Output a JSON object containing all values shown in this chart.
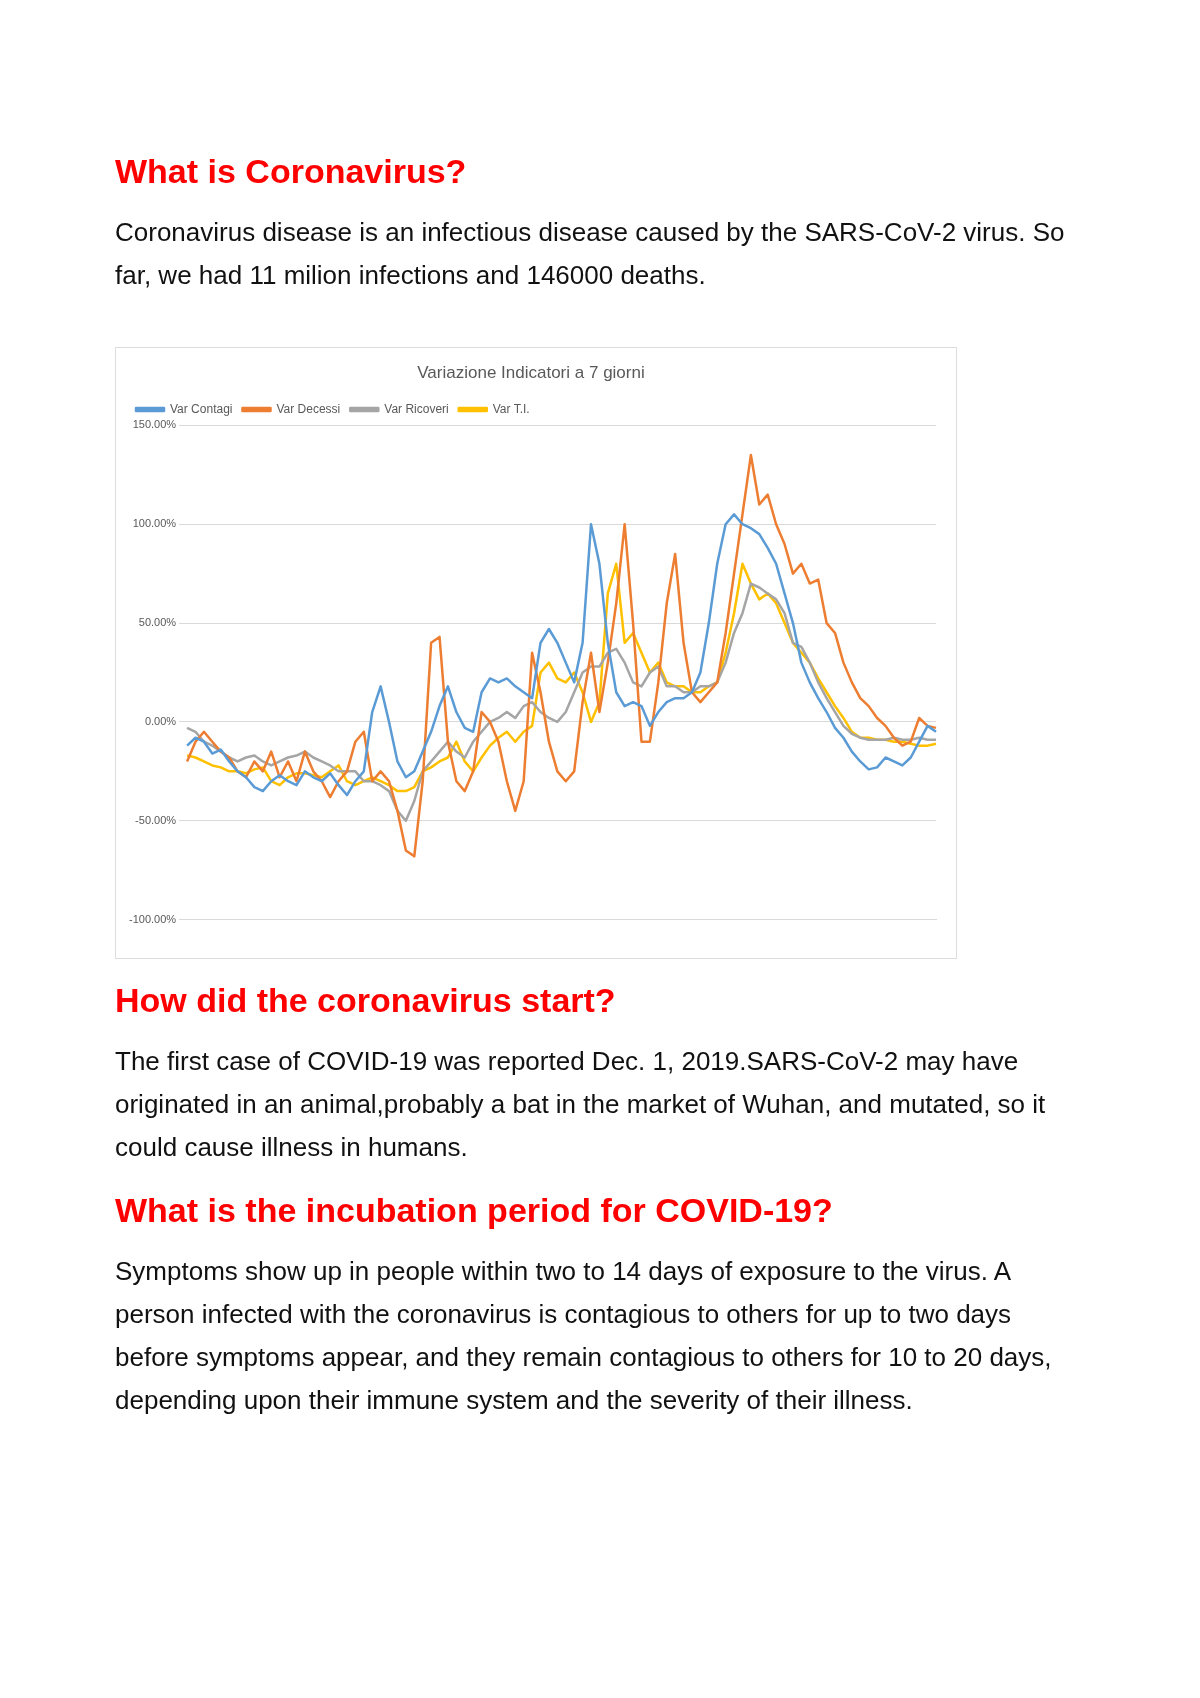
{
  "chart_data": {
    "type": "line",
    "title": "Variazione Indicatori a 7 giorni",
    "annotations": [
      "What is Coronavirus?",
      "Coronavirus disease is an infectious disease caused by the SARS-CoV-2 virus. So far, we had 11 milion infections and 146000 deaths.",
      "How did the coronavirus start?",
      "The first case of COVID-19 was reported Dec. 1, 2019.SARS-CoV-2 may have originated in an animal,probably a bat in the market of Wuhan, and mutated, so it could cause illness in humans.",
      "What is the incubation period for COVID-19?",
      "Symptoms show up in people within two to 14 days of exposure to the virus. A person infected with the coronavirus is contagious to others for up to two days before symptoms appear, and they remain contagious to others for 10 to 20 days, depending upon their immune system and the severity of their illness."
    ],
    "categories": [
      null,
      null,
      null,
      null,
      null,
      null,
      null,
      null,
      null,
      null,
      null,
      null,
      null,
      null,
      null,
      null,
      null,
      null,
      null,
      null,
      null,
      null,
      null,
      null,
      null,
      null,
      null,
      null,
      null,
      null,
      null,
      null,
      null,
      null,
      null,
      null,
      null,
      null,
      null,
      null,
      null,
      null,
      null,
      null,
      null,
      null,
      null,
      null,
      null,
      null,
      null,
      null,
      null,
      null,
      null,
      null,
      null,
      null,
      null,
      null,
      null,
      null,
      null,
      null,
      null,
      null,
      null,
      null,
      null,
      null,
      null,
      null,
      null,
      null,
      null,
      null,
      null,
      null,
      null,
      null,
      null,
      null,
      null,
      null,
      null,
      null,
      null,
      null,
      null,
      null
    ],
    "series": [
      {
        "name": "Var Contagi",
        "color": "#5b9bd5",
        "values": [
          -12,
          -8,
          -10,
          -16,
          -14,
          -20,
          -25,
          -28,
          -33,
          -35,
          -30,
          -27,
          -30,
          -32,
          -25,
          -28,
          -30,
          -26,
          -32,
          -37,
          -30,
          -25,
          5,
          18,
          0,
          -20,
          -28,
          -25,
          -15,
          -5,
          8,
          18,
          5,
          -3,
          -5,
          15,
          22,
          20,
          22,
          18,
          15,
          12,
          40,
          47,
          40,
          30,
          20,
          40,
          100,
          80,
          40,
          15,
          8,
          10,
          8,
          -2,
          5,
          10,
          12,
          12,
          15,
          25,
          50,
          80,
          100,
          105,
          100,
          98,
          95,
          88,
          80,
          65,
          50,
          30,
          20,
          12,
          5,
          -3,
          -8,
          -15,
          -20,
          -24,
          -23,
          -18,
          -20,
          -22,
          -18,
          -10,
          -2,
          -5
        ]
      },
      {
        "name": "Var Decessi",
        "color": "#ed7d31",
        "values": [
          -20,
          -10,
          -5,
          -10,
          -15,
          -18,
          -25,
          -28,
          -20,
          -25,
          -15,
          -28,
          -20,
          -30,
          -15,
          -25,
          -30,
          -38,
          -30,
          -25,
          -10,
          -5,
          -30,
          -25,
          -30,
          -45,
          -65,
          -68,
          -30,
          40,
          43,
          -10,
          -30,
          -35,
          -25,
          5,
          0,
          -10,
          -30,
          -45,
          -30,
          35,
          15,
          -10,
          -25,
          -30,
          -25,
          10,
          35,
          5,
          30,
          60,
          100,
          50,
          -10,
          -10,
          20,
          60,
          85,
          40,
          15,
          10,
          15,
          20,
          45,
          75,
          105,
          135,
          110,
          115,
          100,
          90,
          75,
          80,
          70,
          72,
          50,
          45,
          30,
          20,
          12,
          8,
          2,
          -2,
          -8,
          -12,
          -10,
          2,
          -2,
          -3
        ]
      },
      {
        "name": "Var Ricoveri",
        "color": "#a5a5a5",
        "values": [
          -3,
          -5,
          -10,
          -12,
          -15,
          -18,
          -20,
          -18,
          -17,
          -20,
          -22,
          -20,
          -18,
          -17,
          -15,
          -18,
          -20,
          -22,
          -25,
          -25,
          -25,
          -30,
          -30,
          -32,
          -35,
          -45,
          -50,
          -40,
          -25,
          -20,
          -15,
          -10,
          -15,
          -18,
          -10,
          -5,
          0,
          2,
          5,
          2,
          8,
          10,
          5,
          2,
          0,
          5,
          15,
          25,
          28,
          28,
          35,
          37,
          30,
          20,
          18,
          25,
          28,
          18,
          18,
          15,
          15,
          18,
          18,
          20,
          30,
          45,
          55,
          70,
          68,
          65,
          62,
          55,
          40,
          38,
          30,
          20,
          12,
          5,
          -2,
          -6,
          -8,
          -9,
          -9,
          -9,
          -8,
          -9,
          -9,
          -8,
          -9,
          -9
        ]
      },
      {
        "name": "Var T.I.",
        "color": "#ffc000",
        "values": [
          -17,
          -18,
          -20,
          -22,
          -23,
          -25,
          -25,
          -26,
          -24,
          -23,
          -30,
          -32,
          -28,
          -26,
          -26,
          -27,
          -28,
          -25,
          -22,
          -30,
          -32,
          -30,
          -28,
          -30,
          -32,
          -35,
          -35,
          -33,
          -25,
          -23,
          -20,
          -18,
          -10,
          -20,
          -25,
          -18,
          -12,
          -8,
          -5,
          -10,
          -5,
          -2,
          25,
          30,
          22,
          20,
          25,
          15,
          0,
          10,
          65,
          80,
          40,
          45,
          35,
          25,
          30,
          20,
          18,
          18,
          15,
          15,
          18,
          20,
          35,
          55,
          80,
          70,
          62,
          65,
          60,
          50,
          40,
          35,
          30,
          22,
          15,
          8,
          2,
          -5,
          -8,
          -8,
          -9,
          -9,
          -10,
          -10,
          -11,
          -12,
          -12,
          -11
        ]
      }
    ],
    "ylim": [
      -100,
      150
    ],
    "yticks": [
      {
        "value": -100,
        "label": "-100.00%"
      },
      {
        "value": -50,
        "label": "-50.00%"
      },
      {
        "value": 0,
        "label": "0.00%"
      },
      {
        "value": 50,
        "label": "50.00%"
      },
      {
        "value": 100,
        "label": "100.00%"
      },
      {
        "value": 150,
        "label": "150.00%"
      }
    ],
    "grid": "y",
    "legend": "top left",
    "line_style": "solid"
  }
}
